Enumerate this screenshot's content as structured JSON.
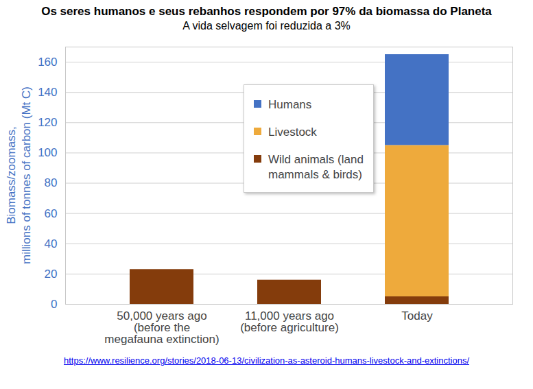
{
  "chart_data": {
    "type": "bar",
    "stacked": true,
    "title": "Os seres humanos e seus rebanhos respondem por 97% da biomassa do Planeta",
    "subtitle": "A vida selvagem foi reduzida a 3%",
    "caption": "https://www.resilience.org/stories/2018-06-13/civilization-as-asteroid-humans-livestock-and-extinctions/",
    "ylabel": "Biomass/zoomass,\nmillions of tonnes of carbon (Mt C)",
    "categories": [
      "50,000 years ago\n(before the\nmegafauna extinction)",
      "11,000 years ago\n(before agriculture)",
      "Today"
    ],
    "series": [
      {
        "name": "Humans",
        "color": "#4472c4",
        "values": [
          0,
          0,
          60
        ]
      },
      {
        "name": "Livestock",
        "color": "#eeaa3c",
        "values": [
          0,
          0,
          100
        ]
      },
      {
        "name": "Wild animals (land\nmammals & birds)",
        "color": "#843c0c",
        "values": [
          23,
          16,
          5
        ]
      }
    ],
    "ylim": [
      0,
      170
    ],
    "yticks": [
      0,
      20,
      40,
      60,
      80,
      100,
      120,
      140,
      160
    ],
    "grid": true,
    "legend": "center"
  }
}
